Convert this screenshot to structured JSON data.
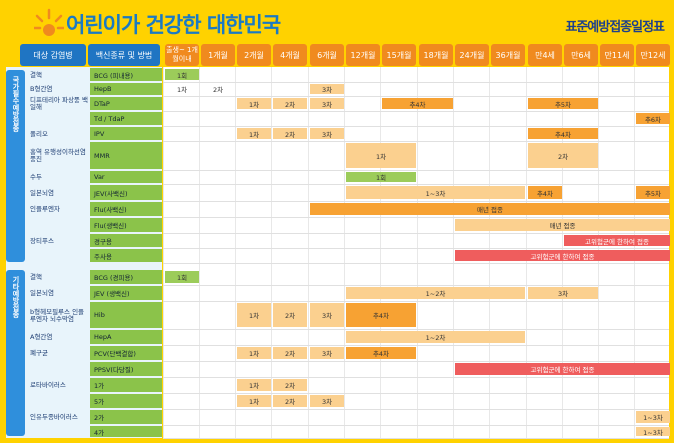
{
  "title": "어린이가 건강한 대한민국",
  "subtitle": "표준예방접종일정표",
  "header": {
    "disease": "대상 감염병",
    "vaccine": "백신종류 및 방법",
    "ages": [
      "출생~ 1개월이내",
      "1개월",
      "2개월",
      "4개월",
      "6개월",
      "12개월",
      "15개월",
      "18개월",
      "24개월",
      "36개월",
      "만4세",
      "만6세",
      "만11세",
      "만12세"
    ]
  },
  "groups": {
    "national": "국가필수예방접종",
    "other": "기타예방접종"
  },
  "rows": [
    {
      "disease": "결핵",
      "vaccine": "BCG (피내용)"
    },
    {
      "disease": "B형간염",
      "vaccine": "HepB"
    },
    {
      "disease": "디프테리아 파상풍 백일해",
      "vaccine": "DTaP"
    },
    {
      "disease": "",
      "vaccine": "Td / TdaP"
    },
    {
      "disease": "폴리오",
      "vaccine": "IPV"
    },
    {
      "disease": "홍역 유행성이하선염 풍진",
      "vaccine": "MMR"
    },
    {
      "disease": "수두",
      "vaccine": "Var"
    },
    {
      "disease": "일본뇌염",
      "vaccine": "JEV(사백신)"
    },
    {
      "disease": "인플루엔자",
      "vaccine": "Flu(사백신)"
    },
    {
      "disease": "",
      "vaccine": "Flu(생백신)"
    },
    {
      "disease": "장티푸스",
      "vaccine": "경구용"
    },
    {
      "disease": "",
      "vaccine": "주사용"
    },
    {
      "disease": "결핵",
      "vaccine": "BCG (경피용)"
    },
    {
      "disease": "일본뇌염",
      "vaccine": "JEV (생백신)"
    },
    {
      "disease": "b형헤모필루스 인플루엔자 뇌수막염",
      "vaccine": "Hib"
    },
    {
      "disease": "A형간염",
      "vaccine": "HepA"
    },
    {
      "disease": "폐구균",
      "vaccine": "PCV(단백결합)"
    },
    {
      "disease": "",
      "vaccine": "PPSV(다당질)"
    },
    {
      "disease": "로타바이러스",
      "vaccine": "1가"
    },
    {
      "disease": "",
      "vaccine": "5가"
    },
    {
      "disease": "인유두종바이러스",
      "vaccine": "2가"
    },
    {
      "disease": "",
      "vaccine": "4가"
    }
  ],
  "doses": {
    "d1": "1회",
    "d1b": "1차",
    "d2": "2차",
    "d3": "3차",
    "d4": "추4차",
    "d5": "추5차",
    "d6": "추6차",
    "d13": "1~3차",
    "d12": "1~2차",
    "d1only": "1회",
    "flu": "매년 접종",
    "hr": "고위험군에 한하여 접종"
  }
}
